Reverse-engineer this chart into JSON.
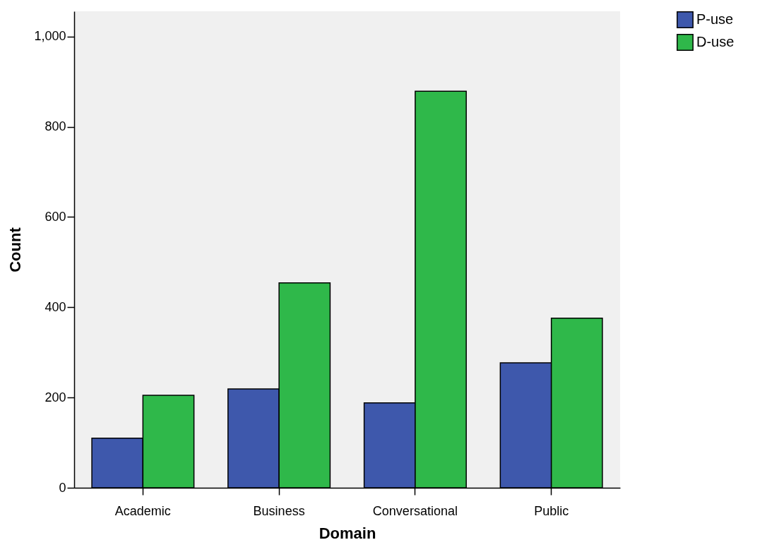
{
  "chart_data": {
    "type": "bar",
    "xlabel": "Domain",
    "ylabel": "Count",
    "categories": [
      "Academic",
      "Business",
      "Conversational",
      "Public"
    ],
    "series": [
      {
        "name": "P-use",
        "color": "#3e58ac",
        "values": [
          110,
          219,
          188,
          277
        ]
      },
      {
        "name": "D-use",
        "color": "#2fb84a",
        "values": [
          205,
          454,
          879,
          376
        ]
      }
    ],
    "ylim": [
      0,
      1056
    ],
    "yticks": [
      0,
      {
        "value": 200,
        "label": "200"
      },
      {
        "value": 400,
        "label": "400"
      },
      {
        "value": 600,
        "label": "600"
      },
      {
        "value": 800,
        "label": "800"
      },
      {
        "value": 1000,
        "label": "1,000"
      }
    ],
    "grid": false,
    "legend": "top right"
  }
}
